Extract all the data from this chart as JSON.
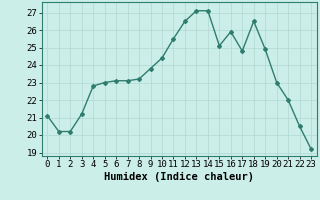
{
  "x": [
    0,
    1,
    2,
    3,
    4,
    5,
    6,
    7,
    8,
    9,
    10,
    11,
    12,
    13,
    14,
    15,
    16,
    17,
    18,
    19,
    20,
    21,
    22,
    23
  ],
  "y": [
    21.1,
    20.2,
    20.2,
    21.2,
    22.8,
    23.0,
    23.1,
    23.1,
    23.2,
    23.8,
    24.4,
    25.5,
    26.5,
    27.1,
    27.1,
    25.1,
    25.9,
    24.8,
    26.5,
    24.9,
    23.0,
    22.0,
    20.5,
    19.2
  ],
  "line_color": "#2e7d6e",
  "marker": "D",
  "marker_size": 2.0,
  "bg_color": "#cceee8",
  "grid_color": "#b0d8d2",
  "xlabel": "Humidex (Indice chaleur)",
  "xlim": [
    -0.5,
    23.5
  ],
  "ylim": [
    18.8,
    27.6
  ],
  "yticks": [
    19,
    20,
    21,
    22,
    23,
    24,
    25,
    26,
    27
  ],
  "xticks": [
    0,
    1,
    2,
    3,
    4,
    5,
    6,
    7,
    8,
    9,
    10,
    11,
    12,
    13,
    14,
    15,
    16,
    17,
    18,
    19,
    20,
    21,
    22,
    23
  ],
  "xlabel_fontsize": 7.5,
  "tick_fontsize": 6.5,
  "line_width": 1.0
}
